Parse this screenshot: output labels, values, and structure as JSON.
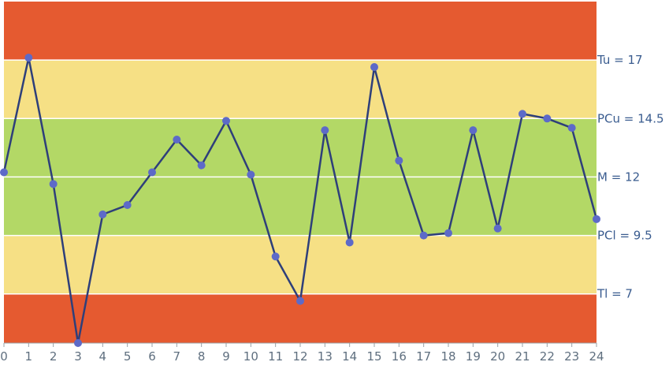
{
  "chart_data": {
    "type": "line",
    "title": "",
    "xlabel": "",
    "ylabel": "",
    "x": [
      0,
      1,
      2,
      3,
      4,
      5,
      6,
      7,
      8,
      9,
      10,
      11,
      12,
      13,
      14,
      15,
      16,
      17,
      18,
      19,
      20,
      21,
      22,
      23,
      24
    ],
    "values": [
      12.2,
      17.1,
      11.7,
      4.9,
      10.4,
      10.8,
      12.2,
      13.6,
      12.5,
      14.4,
      12.1,
      8.6,
      6.7,
      14.0,
      9.2,
      16.7,
      12.7,
      9.5,
      9.6,
      14.0,
      9.8,
      14.7,
      14.5,
      14.1,
      10.2
    ],
    "xlim": [
      0,
      24
    ],
    "ylim": [
      4.9,
      19.5
    ],
    "bands": [
      {
        "from": 17,
        "to": 19.5,
        "color": "#e55a30"
      },
      {
        "from": 14.5,
        "to": 17,
        "color": "#f6e085"
      },
      {
        "from": 9.5,
        "to": 14.5,
        "color": "#b3d866"
      },
      {
        "from": 7,
        "to": 9.5,
        "color": "#f6e085"
      },
      {
        "from": 4.9,
        "to": 7,
        "color": "#e55a30"
      }
    ],
    "reference_lines": [
      {
        "label": "Tu = 17",
        "value": 17
      },
      {
        "label": "PCu = 14.5",
        "value": 14.5
      },
      {
        "label": "M = 12",
        "value": 12
      },
      {
        "label": "PCl = 9.5",
        "value": 9.5
      },
      {
        "label": "Tl = 7",
        "value": 7
      }
    ],
    "line_color": "#2e3f7a",
    "marker_color": "#5d6ac8",
    "grid": false,
    "legend": "none"
  }
}
